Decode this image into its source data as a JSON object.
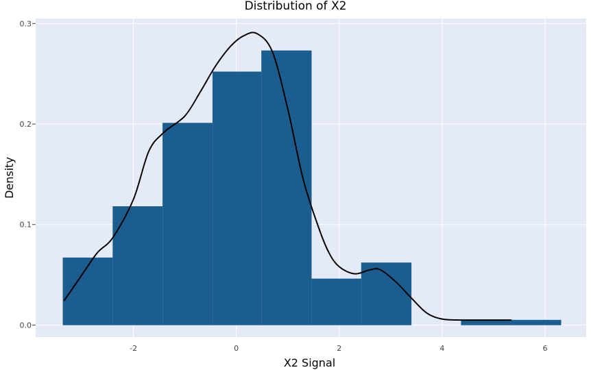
{
  "chart_data": {
    "type": "bar",
    "title": "Distribution of X2",
    "xlabel": "X2 Signal",
    "ylabel": "Density",
    "xlim": [
      -3.9,
      6.8
    ],
    "ylim": [
      -0.012,
      0.305
    ],
    "x_ticks": [
      -2,
      0,
      2,
      4,
      6
    ],
    "x_tick_labels": [
      "-2",
      "0",
      "2",
      "4",
      "6"
    ],
    "y_ticks": [
      0,
      0.1,
      0.2,
      0.3
    ],
    "y_tick_labels": [
      "0.0",
      "0.1",
      "0.2",
      "0.3"
    ],
    "grid": true,
    "bins": [
      {
        "x0": -3.37,
        "x1": -2.4,
        "density": 0.067
      },
      {
        "x0": -2.4,
        "x1": -1.43,
        "density": 0.118
      },
      {
        "x0": -1.43,
        "x1": -0.46,
        "density": 0.201
      },
      {
        "x0": -0.46,
        "x1": 0.49,
        "density": 0.252
      },
      {
        "x0": 0.49,
        "x1": 1.46,
        "density": 0.273
      },
      {
        "x0": 1.46,
        "x1": 2.43,
        "density": 0.046
      },
      {
        "x0": 2.43,
        "x1": 3.4,
        "density": 0.062
      },
      {
        "x0": 3.4,
        "x1": 4.37,
        "density": 0.0
      },
      {
        "x0": 4.37,
        "x1": 5.34,
        "density": 0.005
      },
      {
        "x0": 5.34,
        "x1": 6.31,
        "density": 0.005
      }
    ],
    "density_curve": {
      "x": [
        -3.35,
        -3.0,
        -2.7,
        -2.4,
        -2.0,
        -1.7,
        -1.4,
        -1.0,
        -0.7,
        -0.4,
        -0.1,
        0.15,
        0.4,
        0.7,
        1.0,
        1.3,
        1.6,
        1.8,
        2.0,
        2.3,
        2.6,
        2.8,
        3.1,
        3.4,
        3.7,
        4.0,
        4.4,
        5.0,
        5.35
      ],
      "y": [
        0.024,
        0.05,
        0.072,
        0.087,
        0.125,
        0.173,
        0.192,
        0.208,
        0.232,
        0.258,
        0.278,
        0.288,
        0.29,
        0.272,
        0.215,
        0.145,
        0.097,
        0.072,
        0.058,
        0.051,
        0.055,
        0.055,
        0.043,
        0.027,
        0.012,
        0.006,
        0.005,
        0.005,
        0.005
      ]
    },
    "colors": {
      "bar": "#1c5d8f",
      "curve": "#000000",
      "plot_background": "#e5ebf6",
      "grid": "#ffffff"
    }
  }
}
